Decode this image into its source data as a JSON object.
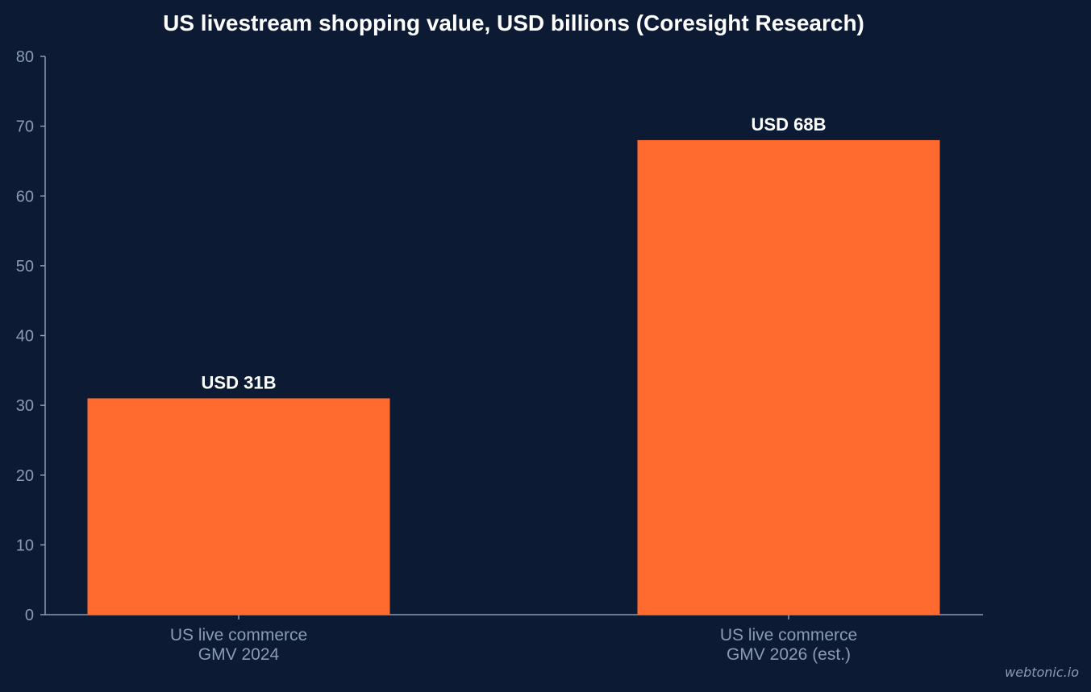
{
  "chart_data": {
    "type": "bar",
    "title": "US livestream shopping value, USD billions (Coresight Research)",
    "categories": [
      [
        "US live commerce",
        "GMV 2024"
      ],
      [
        "US live commerce",
        "GMV 2026 (est.)"
      ]
    ],
    "values": [
      31,
      68
    ],
    "data_labels": [
      "USD 31B",
      "USD 68B"
    ],
    "ylim": [
      0,
      80
    ],
    "yticks": [
      0,
      10,
      20,
      30,
      40,
      50,
      60,
      70,
      80
    ],
    "ytick_labels": [
      "0",
      "10",
      "20",
      "30",
      "40",
      "50",
      "60",
      "70",
      "80"
    ],
    "xlabel": "",
    "ylabel": "",
    "grid": false,
    "colors": {
      "background": "#0c1b33",
      "bar": "#ff6b2f",
      "axis": "#8a9bb4",
      "text": "#ffffff",
      "tick_text": "#8a9bb4"
    }
  },
  "watermark": "webtonic.io"
}
